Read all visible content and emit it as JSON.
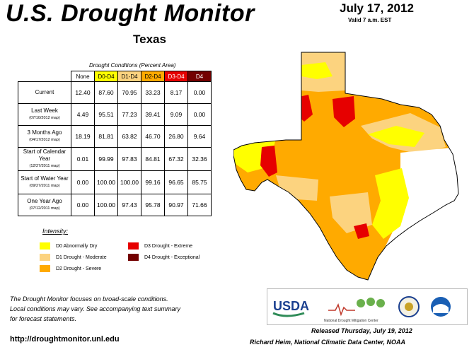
{
  "header": {
    "title": "U.S. Drought Monitor",
    "state": "Texas",
    "date": "July 17, 2012",
    "valid": "Valid 7 a.m. EST"
  },
  "table": {
    "caption": "Drought Conditions (Percent Area)",
    "columns": [
      "None",
      "D0-D4",
      "D1-D4",
      "D2-D4",
      "D3-D4",
      "D4"
    ],
    "column_colors": [
      "#ffffff",
      "#ffff00",
      "#fcd37f",
      "#ffaa00",
      "#e60000",
      "#730000"
    ],
    "column_text_colors": [
      "#000000",
      "#000000",
      "#000000",
      "#000000",
      "#ffffff",
      "#ffffff"
    ],
    "rows": [
      {
        "label": "Current",
        "sub": "",
        "values": [
          "12.40",
          "87.60",
          "70.95",
          "33.23",
          "8.17",
          "0.00"
        ]
      },
      {
        "label": "Last Week",
        "sub": "(07/10/2012 map)",
        "values": [
          "4.49",
          "95.51",
          "77.23",
          "39.41",
          "9.09",
          "0.00"
        ]
      },
      {
        "label": "3 Months Ago",
        "sub": "(04/17/2012 map)",
        "values": [
          "18.19",
          "81.81",
          "63.82",
          "46.70",
          "26.80",
          "9.64"
        ]
      },
      {
        "label": "Start of Calendar Year",
        "sub": "(12/27/2011 map)",
        "values": [
          "0.01",
          "99.99",
          "97.83",
          "84.81",
          "67.32",
          "32.36"
        ]
      },
      {
        "label": "Start of Water Year",
        "sub": "(09/27/2011 map)",
        "values": [
          "0.00",
          "100.00",
          "100.00",
          "99.16",
          "96.65",
          "85.75"
        ]
      },
      {
        "label": "One Year Ago",
        "sub": "(07/12/2011 map)",
        "values": [
          "0.00",
          "100.00",
          "97.43",
          "95.78",
          "90.97",
          "71.66"
        ]
      }
    ]
  },
  "legend": {
    "title": "Intensity:",
    "items": [
      {
        "label": "D0 Abnormally Dry",
        "color": "#ffff00"
      },
      {
        "label": "D1 Drought - Moderate",
        "color": "#fcd37f"
      },
      {
        "label": "D2 Drought - Severe",
        "color": "#ffaa00"
      },
      {
        "label": "D3 Drought - Extreme",
        "color": "#e60000"
      },
      {
        "label": "D4 Drought - Exceptional",
        "color": "#730000"
      }
    ]
  },
  "footer": {
    "note_line1": "The Drought Monitor focuses on broad-scale conditions.",
    "note_line2": "Local conditions may vary. See accompanying text summary",
    "note_line3": "for forecast statements.",
    "url": "http://droughtmonitor.unl.edu",
    "released": "Released Thursday, July 19, 2012",
    "author": "Richard Heim, National Climatic Data Center, NOAA"
  },
  "logos": {
    "usda": "USDA",
    "ndmc": "National Drought Mitigation Center"
  }
}
